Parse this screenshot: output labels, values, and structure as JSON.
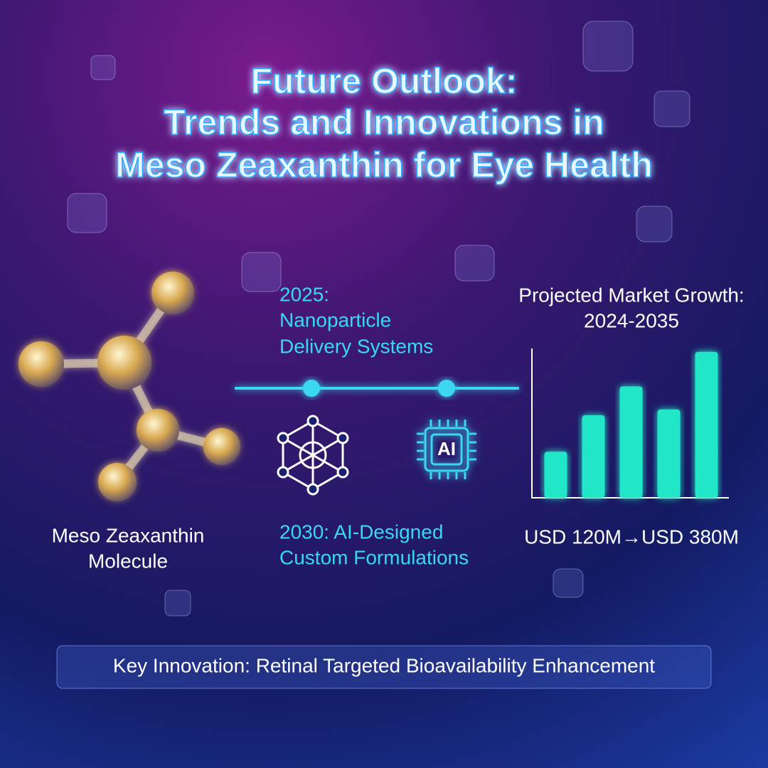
{
  "title": [
    "Future Outlook:",
    "Trends and Innovations in",
    "Meso Zeaxanthin for Eye Health"
  ],
  "molecule_label": [
    "Meso Zeaxanthin",
    "Molecule"
  ],
  "timeline": [
    [
      "2025:",
      "Nanoparticle",
      "Delivery Systems"
    ],
    [
      "2030: AI-Designed",
      "Custom Formulations"
    ]
  ],
  "icon_label": "AI",
  "chart_data": {
    "type": "bar",
    "title": [
      "Projected Market Growth:",
      "2024-2035"
    ],
    "categories": [
      null,
      null,
      null,
      null,
      null
    ],
    "values": [
      120,
      215,
      290,
      230,
      380
    ],
    "ylim": [
      0,
      400
    ],
    "color": "#22e6c8",
    "caption": "USD 120M→USD 380M"
  },
  "footer": "Key Innovation: Retinal Targeted Bioavailability Enhancement"
}
